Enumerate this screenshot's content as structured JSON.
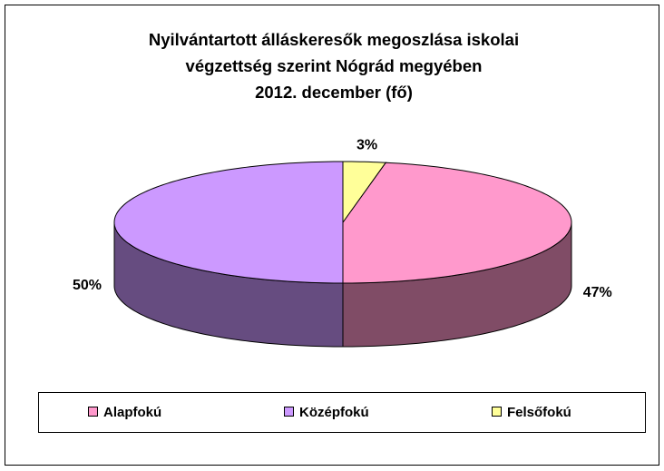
{
  "chart_data": {
    "type": "pie3d",
    "title": [
      "Nyilvántartott álláskeresők megoszlása iskolai",
      "végzettség szerint Nógrád megyében",
      "2012. december (fő)"
    ],
    "categories": [
      "Alapfokú",
      "Középfokú",
      "Felsőfokú"
    ],
    "values": [
      47,
      50,
      3
    ],
    "value_labels": [
      "47%",
      "50%",
      "3%"
    ],
    "colors": [
      "#FF99CC",
      "#CC99FF",
      "#FFFF99"
    ],
    "side_colors": [
      "#804C66",
      "#664C80",
      "#80804C"
    ],
    "legend": "bottom"
  }
}
